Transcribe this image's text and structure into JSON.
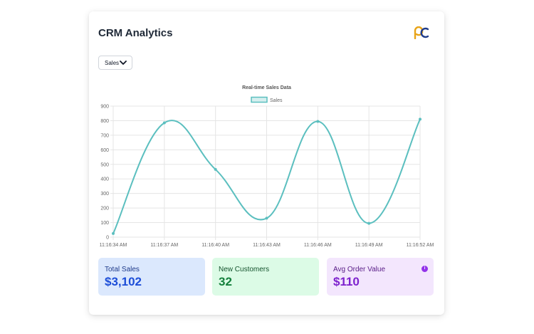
{
  "header": {
    "title": "CRM Analytics",
    "logo_icon": "pc-logo"
  },
  "dropdown": {
    "selected": "Sales"
  },
  "chart_data": {
    "type": "line",
    "title": "Real-time Sales Data",
    "categories": [
      "11:16:34 AM",
      "11:16:37 AM",
      "11:16:40 AM",
      "11:16:43 AM",
      "11:16:46 AM",
      "11:16:49 AM",
      "11:16:52 AM"
    ],
    "series": [
      {
        "name": "Sales",
        "values": [
          25,
          785,
          465,
          130,
          795,
          95,
          810
        ],
        "color": "#5bbfbf"
      }
    ],
    "ylim": [
      0,
      900
    ],
    "yticks": [
      0,
      100,
      200,
      300,
      400,
      500,
      600,
      700,
      800,
      900
    ],
    "grid": true,
    "legend": "top-center"
  },
  "stats": {
    "total_sales": {
      "label": "Total Sales",
      "value": "$3,102",
      "color": "#dbe8fd"
    },
    "new_customers": {
      "label": "New Customers",
      "value": "32",
      "color": "#dcfbe6"
    },
    "avg_order": {
      "label": "Avg Order Value",
      "value": "$110",
      "color": "#f3e6fd",
      "info_icon": "info-icon"
    }
  }
}
